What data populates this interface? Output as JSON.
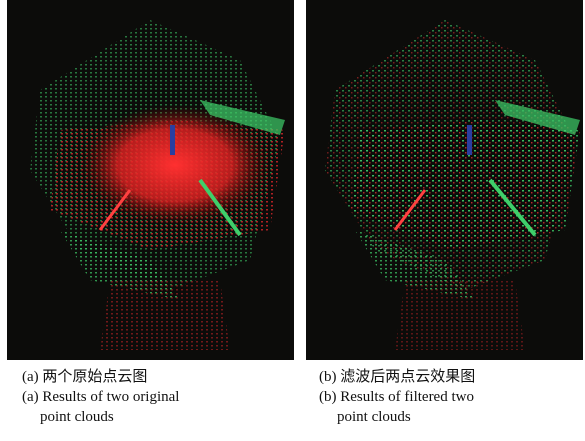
{
  "figure": {
    "panels": [
      {
        "caption_zh": "(a) 两个原始点云图",
        "caption_en_lines": [
          "(a) Results of two original",
          "point clouds"
        ]
      },
      {
        "caption_zh": "(b) 滤波后两点云效果图",
        "caption_en_lines": [
          "(b) Results of filtered two",
          "point clouds"
        ]
      }
    ]
  }
}
